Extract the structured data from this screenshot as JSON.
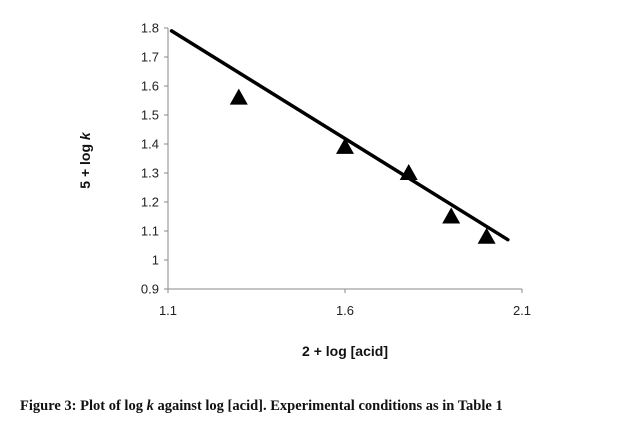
{
  "chart_data": {
    "type": "scatter",
    "xlabel": "2 + log [acid]",
    "ylabel_prefix": "5 + log ",
    "ylabel_italic": "k",
    "xlim": [
      1.1,
      2.1
    ],
    "ylim": [
      0.9,
      1.8
    ],
    "x_ticks": [
      1.1,
      1.6,
      2.1
    ],
    "x_tick_labels": [
      "1.1",
      "1.6",
      "2.1"
    ],
    "y_ticks": [
      0.9,
      1.0,
      1.1,
      1.2,
      1.3,
      1.4,
      1.5,
      1.6,
      1.7,
      1.8
    ],
    "y_tick_labels": [
      "0.9",
      "1",
      "1.1",
      "1.2",
      "1.3",
      "1.4",
      "1.5",
      "1.6",
      "1.7",
      "1.8"
    ],
    "grid": false,
    "legend": false,
    "series": [
      {
        "marker": "triangle",
        "color": "#000000",
        "points": [
          {
            "x": 1.3,
            "y": 1.56
          },
          {
            "x": 1.6,
            "y": 1.39
          },
          {
            "x": 1.78,
            "y": 1.3
          },
          {
            "x": 1.9,
            "y": 1.15
          },
          {
            "x": 2.0,
            "y": 1.08
          }
        ]
      }
    ],
    "trendline": {
      "color": "#000000",
      "from": {
        "x": 1.11,
        "y": 1.79
      },
      "to": {
        "x": 2.06,
        "y": 1.07
      }
    }
  },
  "caption": {
    "prefix": "Figure 3: Plot of log ",
    "italic": "k",
    "suffix": " against log [acid]. Experimental conditions as in Table 1"
  }
}
